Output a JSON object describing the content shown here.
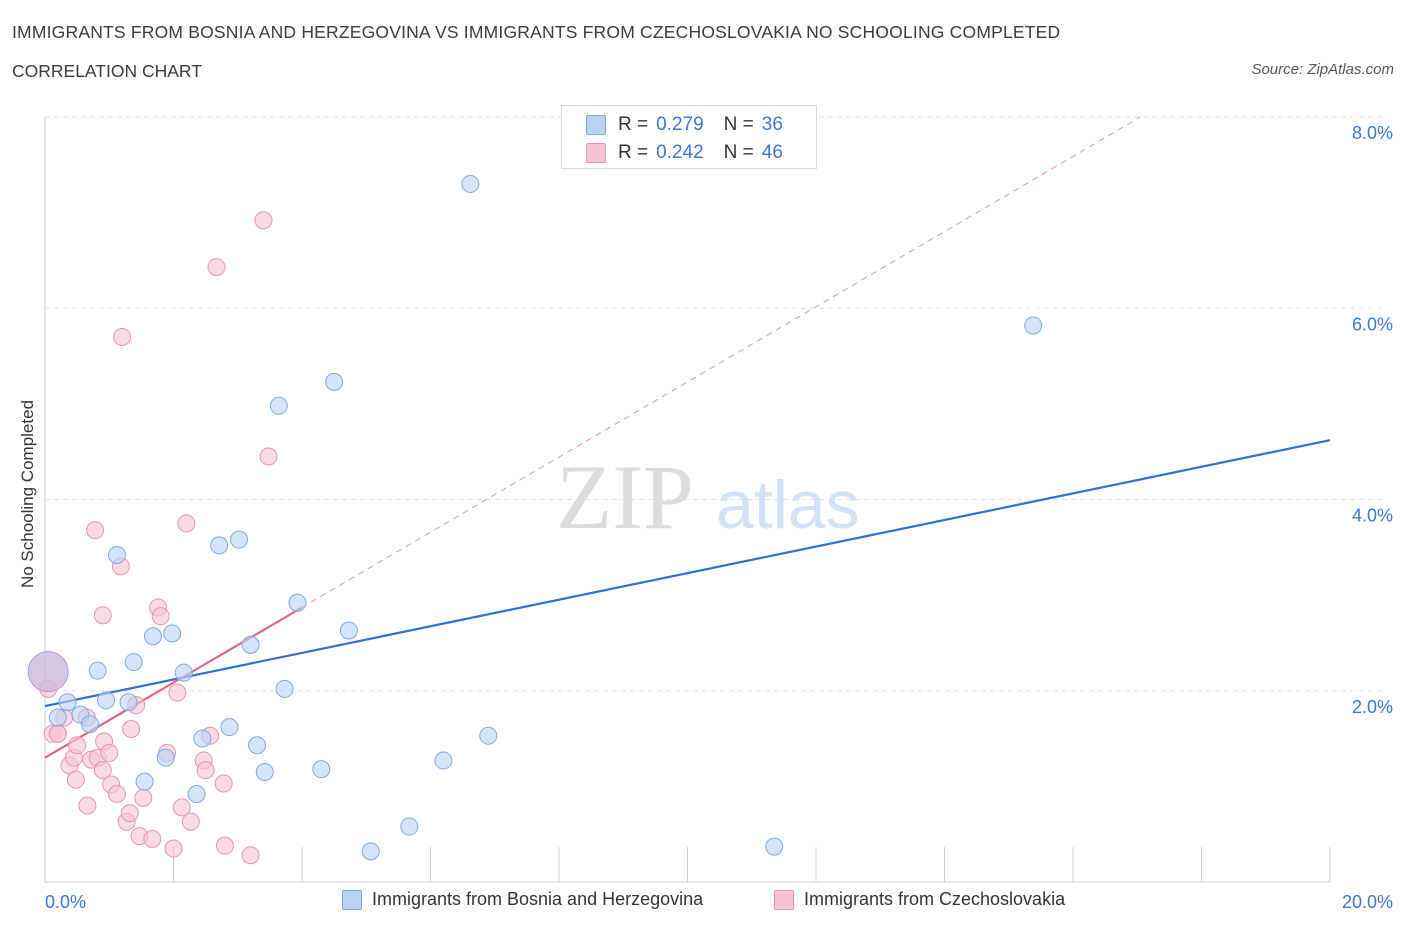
{
  "header": {
    "title": "IMMIGRANTS FROM BOSNIA AND HERZEGOVINA VS IMMIGRANTS FROM CZECHOSLOVAKIA NO SCHOOLING COMPLETED",
    "subtitle": "CORRELATION CHART",
    "source": "Source: ZipAtlas.com"
  },
  "legend": {
    "series1": {
      "r_label": "R =",
      "r_value": "0.279",
      "n_label": "N =",
      "n_value": "36"
    },
    "series2": {
      "r_label": "R =",
      "r_value": "0.242",
      "n_label": "N =",
      "n_value": "46"
    }
  },
  "watermark": {
    "zip": "ZIP",
    "atlas": "atlas"
  },
  "colors": {
    "blue_fill": "#b9d2f3",
    "blue_stroke": "#7fa8e0",
    "blue_line": "#2e6fd0",
    "pink_fill": "#f7c3d4",
    "pink_stroke": "#e594b0",
    "pink_line": "#e0648f",
    "grid": "#e3e3e3",
    "tick_text": "#3a78d4"
  },
  "chart_data": {
    "type": "scatter",
    "title": "IMMIGRANTS FROM BOSNIA AND HERZEGOVINA VS IMMIGRANTS FROM CZECHOSLOVAKIA NO SCHOOLING COMPLETED",
    "xlabel": "",
    "ylabel": "No Schooling Completed",
    "xlim": [
      0,
      20
    ],
    "ylim": [
      0,
      8
    ],
    "x_tick_labels": [
      "0.0%",
      "20.0%"
    ],
    "y_ticks": [
      2,
      4,
      6,
      8
    ],
    "y_tick_labels": [
      "2.0%",
      "4.0%",
      "6.0%",
      "8.0%"
    ],
    "grid": true,
    "legend_position": "top-center",
    "series": [
      {
        "name": "Immigrants from Bosnia and Herzegovina",
        "color": "#b9d2f3",
        "R": 0.279,
        "N": 36,
        "trend": {
          "x": [
            0,
            20
          ],
          "y": [
            1.84,
            4.62
          ]
        },
        "points": [
          {
            "x": 0.05,
            "y": 2.2,
            "big": true
          },
          {
            "x": 0.2,
            "y": 1.72
          },
          {
            "x": 0.35,
            "y": 1.88
          },
          {
            "x": 0.55,
            "y": 1.75
          },
          {
            "x": 0.7,
            "y": 1.65
          },
          {
            "x": 0.82,
            "y": 2.21
          },
          {
            "x": 0.95,
            "y": 1.9
          },
          {
            "x": 1.12,
            "y": 3.42
          },
          {
            "x": 1.3,
            "y": 1.88
          },
          {
            "x": 1.38,
            "y": 2.3
          },
          {
            "x": 1.55,
            "y": 1.05
          },
          {
            "x": 1.68,
            "y": 2.57
          },
          {
            "x": 1.88,
            "y": 1.3
          },
          {
            "x": 1.98,
            "y": 2.6
          },
          {
            "x": 2.16,
            "y": 2.19
          },
          {
            "x": 2.36,
            "y": 0.92
          },
          {
            "x": 2.45,
            "y": 1.5
          },
          {
            "x": 2.71,
            "y": 3.52
          },
          {
            "x": 2.87,
            "y": 1.62
          },
          {
            "x": 3.02,
            "y": 3.58
          },
          {
            "x": 3.2,
            "y": 2.48
          },
          {
            "x": 3.3,
            "y": 1.43
          },
          {
            "x": 3.42,
            "y": 1.15
          },
          {
            "x": 3.64,
            "y": 4.98
          },
          {
            "x": 3.73,
            "y": 2.02
          },
          {
            "x": 3.93,
            "y": 2.92
          },
          {
            "x": 4.3,
            "y": 1.18
          },
          {
            "x": 4.5,
            "y": 5.23
          },
          {
            "x": 4.73,
            "y": 2.63
          },
          {
            "x": 5.07,
            "y": 0.32
          },
          {
            "x": 5.67,
            "y": 0.58
          },
          {
            "x": 6.2,
            "y": 1.27
          },
          {
            "x": 6.62,
            "y": 7.3
          },
          {
            "x": 6.9,
            "y": 1.53
          },
          {
            "x": 11.35,
            "y": 0.37
          },
          {
            "x": 15.38,
            "y": 5.82
          }
        ]
      },
      {
        "name": "Immigrants from Czechoslovakia",
        "color": "#f7c3d4",
        "R": 0.242,
        "N": 46,
        "trend": {
          "x": [
            0,
            4.0
          ],
          "y": [
            1.3,
            2.87
          ]
        },
        "trend_extended": {
          "x": [
            0,
            17.05
          ],
          "y": [
            1.3,
            8.0
          ]
        },
        "points": [
          {
            "x": 0.05,
            "y": 2.02
          },
          {
            "x": 0.12,
            "y": 1.55
          },
          {
            "x": 0.2,
            "y": 1.55
          },
          {
            "x": 0.3,
            "y": 1.72
          },
          {
            "x": 0.38,
            "y": 1.22
          },
          {
            "x": 0.45,
            "y": 1.3
          },
          {
            "x": 0.5,
            "y": 1.43
          },
          {
            "x": 0.48,
            "y": 1.07
          },
          {
            "x": 0.65,
            "y": 1.72
          },
          {
            "x": 0.72,
            "y": 1.28
          },
          {
            "x": 0.66,
            "y": 0.8
          },
          {
            "x": 0.82,
            "y": 1.3
          },
          {
            "x": 0.78,
            "y": 3.68
          },
          {
            "x": 0.92,
            "y": 1.47
          },
          {
            "x": 0.9,
            "y": 1.17
          },
          {
            "x": 0.9,
            "y": 2.79
          },
          {
            "x": 1.0,
            "y": 1.35
          },
          {
            "x": 1.03,
            "y": 1.02
          },
          {
            "x": 1.12,
            "y": 0.92
          },
          {
            "x": 1.2,
            "y": 5.7
          },
          {
            "x": 1.18,
            "y": 3.3
          },
          {
            "x": 1.27,
            "y": 0.63
          },
          {
            "x": 1.32,
            "y": 0.72
          },
          {
            "x": 1.34,
            "y": 1.6
          },
          {
            "x": 1.42,
            "y": 1.85
          },
          {
            "x": 1.47,
            "y": 0.48
          },
          {
            "x": 1.53,
            "y": 0.88
          },
          {
            "x": 1.67,
            "y": 0.45
          },
          {
            "x": 1.76,
            "y": 2.87
          },
          {
            "x": 1.8,
            "y": 2.78
          },
          {
            "x": 1.9,
            "y": 1.35
          },
          {
            "x": 2.0,
            "y": 0.35
          },
          {
            "x": 2.06,
            "y": 1.98
          },
          {
            "x": 2.13,
            "y": 0.78
          },
          {
            "x": 2.2,
            "y": 3.75
          },
          {
            "x": 2.27,
            "y": 0.63
          },
          {
            "x": 2.47,
            "y": 1.27
          },
          {
            "x": 2.5,
            "y": 1.17
          },
          {
            "x": 2.57,
            "y": 1.53
          },
          {
            "x": 2.67,
            "y": 6.43
          },
          {
            "x": 2.78,
            "y": 1.03
          },
          {
            "x": 2.8,
            "y": 0.38
          },
          {
            "x": 3.2,
            "y": 0.28
          },
          {
            "x": 3.4,
            "y": 6.92
          },
          {
            "x": 3.48,
            "y": 4.45
          },
          {
            "x": 0.2,
            "y": 1.55
          }
        ]
      }
    ]
  },
  "bottom_legend": {
    "series1_label": "Immigrants from Bosnia and Herzegovina",
    "series2_label": "Immigrants from Czechoslovakia"
  }
}
